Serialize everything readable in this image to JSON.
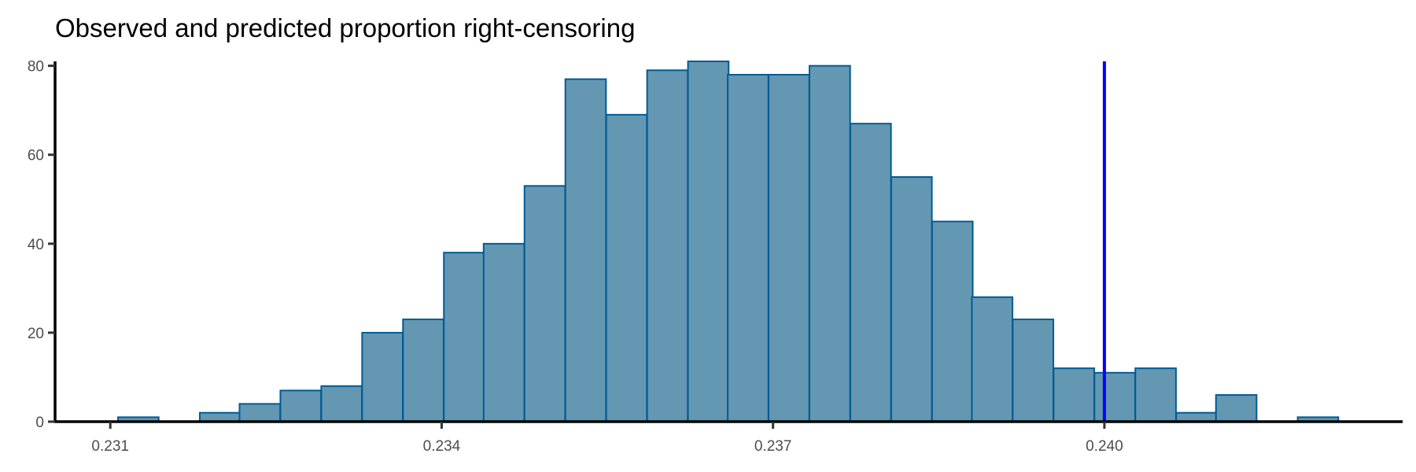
{
  "chart_data": {
    "type": "bar",
    "title": "Observed and predicted proportion right-censoring",
    "xlabel": "",
    "ylabel": "",
    "xlim": [
      0.2305,
      0.2427
    ],
    "ylim": [
      0,
      81
    ],
    "x_ticks": [
      0.231,
      0.234,
      0.237,
      0.24
    ],
    "x_tick_labels": [
      "0.231",
      "0.234",
      "0.237",
      "0.240"
    ],
    "y_ticks": [
      0,
      20,
      40,
      60,
      80
    ],
    "y_tick_labels": [
      "0",
      "20",
      "40",
      "60",
      "80"
    ],
    "bin_width": 0.000368,
    "bin_starts": [
      0.23107,
      0.23144,
      0.23181,
      0.23217,
      0.23254,
      0.23291,
      0.23328,
      0.23365,
      0.23402,
      0.23438,
      0.23475,
      0.23512,
      0.23549,
      0.23586,
      0.23623,
      0.23659,
      0.23696,
      0.23733,
      0.2377,
      0.23807,
      0.23844,
      0.2388,
      0.23917,
      0.23954,
      0.23991,
      0.24028,
      0.24065,
      0.24101,
      0.24138,
      0.24175,
      0.24212
    ],
    "counts": [
      1,
      0,
      2,
      4,
      7,
      8,
      20,
      23,
      38,
      40,
      53,
      77,
      69,
      79,
      81,
      78,
      78,
      80,
      67,
      55,
      45,
      28,
      23,
      12,
      11,
      12,
      2,
      6,
      0,
      1,
      0
    ],
    "observed_value": 0.24,
    "colors": {
      "bar_fill": "#6497b1",
      "bar_stroke": "#005b96",
      "observed_line": "#0000ff"
    },
    "grid": false,
    "legend": "none"
  }
}
